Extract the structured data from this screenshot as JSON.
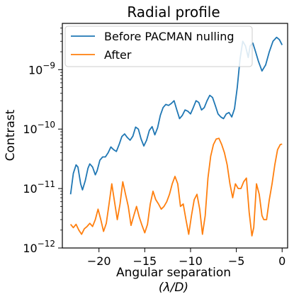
{
  "chart_data": {
    "type": "line",
    "title": "Radial profile",
    "xlabel": "Angular separation",
    "xlabel_unit": "(λ/D)",
    "ylabel": "Contrast",
    "xlim": [
      -24,
      0.6
    ],
    "ylim": [
      1e-12,
      6e-09
    ],
    "yscale": "log",
    "grid": false,
    "legend_position": "top-left",
    "x_ticks": [
      {
        "value": -20,
        "label": "−20"
      },
      {
        "value": -15,
        "label": "−15"
      },
      {
        "value": -10,
        "label": "−10"
      },
      {
        "value": -5,
        "label": "−5"
      },
      {
        "value": 0,
        "label": "0"
      }
    ],
    "y_ticks": [
      {
        "value": 1e-12,
        "base": "10",
        "exp": "−12"
      },
      {
        "value": 1e-11,
        "base": "10",
        "exp": "−11"
      },
      {
        "value": 1e-10,
        "base": "10",
        "exp": "−10"
      },
      {
        "value": 1e-09,
        "base": "10",
        "exp": "−9"
      }
    ],
    "series": [
      {
        "name": "Before PACMAN nulling",
        "color": "#1f77b4",
        "points": [
          [
            -23.1,
            8e-12
          ],
          [
            -22.8,
            1.8e-11
          ],
          [
            -22.5,
            2.5e-11
          ],
          [
            -22.3,
            2.3e-11
          ],
          [
            -22.0,
            1.2e-11
          ],
          [
            -21.8,
            9.5e-12
          ],
          [
            -21.5,
            1.35e-11
          ],
          [
            -21.2,
            2.2e-11
          ],
          [
            -21.0,
            2.6e-11
          ],
          [
            -20.7,
            2.3e-11
          ],
          [
            -20.4,
            1.7e-11
          ],
          [
            -20.2,
            2e-11
          ],
          [
            -19.9,
            3e-11
          ],
          [
            -19.6,
            3.4e-11
          ],
          [
            -19.3,
            3.4e-11
          ],
          [
            -19.0,
            4e-11
          ],
          [
            -18.7,
            5e-11
          ],
          [
            -18.4,
            4.5e-11
          ],
          [
            -18.1,
            4.2e-11
          ],
          [
            -17.8,
            5.5e-11
          ],
          [
            -17.5,
            7.5e-11
          ],
          [
            -17.2,
            8.3e-11
          ],
          [
            -16.9,
            7.2e-11
          ],
          [
            -16.6,
            6.5e-11
          ],
          [
            -16.3,
            7.6e-11
          ],
          [
            -16.0,
            1.08e-10
          ],
          [
            -15.7,
            1e-10
          ],
          [
            -15.4,
            6.8e-11
          ],
          [
            -15.1,
            5.2e-11
          ],
          [
            -14.8,
            6.5e-11
          ],
          [
            -14.5,
            9.5e-11
          ],
          [
            -14.2,
            1.1e-10
          ],
          [
            -13.9,
            8e-11
          ],
          [
            -13.6,
            1.05e-10
          ],
          [
            -13.3,
            1.7e-10
          ],
          [
            -13.0,
            2.3e-10
          ],
          [
            -12.7,
            2.6e-10
          ],
          [
            -12.4,
            2.5e-10
          ],
          [
            -12.1,
            2.7e-10
          ],
          [
            -11.8,
            3e-10
          ],
          [
            -11.5,
            2.1e-10
          ],
          [
            -11.2,
            1.5e-10
          ],
          [
            -10.9,
            1.7e-10
          ],
          [
            -10.6,
            2.1e-10
          ],
          [
            -10.3,
            2e-10
          ],
          [
            -10.0,
            1.8e-10
          ],
          [
            -9.7,
            2.3e-10
          ],
          [
            -9.4,
            3e-10
          ],
          [
            -9.1,
            2.8e-10
          ],
          [
            -8.8,
            2.1e-10
          ],
          [
            -8.5,
            2.3e-10
          ],
          [
            -8.2,
            3e-10
          ],
          [
            -7.9,
            3.7e-10
          ],
          [
            -7.6,
            3.4e-10
          ],
          [
            -7.3,
            2.5e-10
          ],
          [
            -7.0,
            1.8e-10
          ],
          [
            -6.7,
            1.6e-10
          ],
          [
            -6.4,
            1.5e-10
          ],
          [
            -6.1,
            1.8e-10
          ],
          [
            -5.8,
            1.9e-10
          ],
          [
            -5.5,
            1.6e-10
          ],
          [
            -5.2,
            2.2e-10
          ],
          [
            -4.9,
            5e-10
          ],
          [
            -4.6,
            1.5e-09
          ],
          [
            -4.3,
            3e-09
          ],
          [
            -4.0,
            2.5e-09
          ],
          [
            -3.7,
            1.6e-09
          ],
          [
            -3.5,
            2.5e-09
          ],
          [
            -3.2,
            2.8e-09
          ],
          [
            -2.9,
            2e-09
          ],
          [
            -2.6,
            1.4e-09
          ],
          [
            -2.2,
            9.5e-10
          ],
          [
            -1.8,
            1.2e-09
          ],
          [
            -1.4,
            2e-09
          ],
          [
            -1.0,
            3e-09
          ],
          [
            -0.6,
            3.5e-09
          ],
          [
            -0.3,
            3.2e-09
          ],
          [
            0.0,
            2.6e-09
          ]
        ]
      },
      {
        "name": "After",
        "color": "#ff7f0e",
        "points": [
          [
            -23.1,
            2.5e-12
          ],
          [
            -22.8,
            2.2e-12
          ],
          [
            -22.5,
            2.5e-12
          ],
          [
            -22.2,
            2e-12
          ],
          [
            -21.9,
            1.7e-12
          ],
          [
            -21.6,
            2.1e-12
          ],
          [
            -21.3,
            2.3e-12
          ],
          [
            -21.0,
            2.6e-12
          ],
          [
            -20.7,
            2.3e-12
          ],
          [
            -20.4,
            3e-12
          ],
          [
            -20.1,
            4.5e-12
          ],
          [
            -19.8,
            3e-12
          ],
          [
            -19.5,
            1.9e-12
          ],
          [
            -19.2,
            2.6e-12
          ],
          [
            -18.9,
            5.5e-12
          ],
          [
            -18.6,
            1.2e-11
          ],
          [
            -18.3,
            6e-12
          ],
          [
            -18.0,
            3e-12
          ],
          [
            -17.7,
            5.5e-12
          ],
          [
            -17.4,
            1.3e-11
          ],
          [
            -17.1,
            8e-12
          ],
          [
            -16.8,
            5e-12
          ],
          [
            -16.5,
            2.4e-12
          ],
          [
            -16.2,
            3.5e-12
          ],
          [
            -15.9,
            5e-12
          ],
          [
            -15.6,
            3.3e-12
          ],
          [
            -15.3,
            2.4e-12
          ],
          [
            -15.0,
            1.8e-12
          ],
          [
            -14.7,
            2.5e-12
          ],
          [
            -14.4,
            5.5e-12
          ],
          [
            -14.1,
            9e-12
          ],
          [
            -13.8,
            6.5e-12
          ],
          [
            -13.5,
            5.5e-12
          ],
          [
            -13.2,
            4.5e-12
          ],
          [
            -12.9,
            5e-12
          ],
          [
            -12.6,
            6e-12
          ],
          [
            -12.3,
            8e-12
          ],
          [
            -12.0,
            1.2e-11
          ],
          [
            -11.7,
            1.6e-11
          ],
          [
            -11.4,
            1.2e-11
          ],
          [
            -11.1,
            5e-12
          ],
          [
            -10.8,
            5.5e-12
          ],
          [
            -10.5,
            3e-12
          ],
          [
            -10.2,
            1.7e-12
          ],
          [
            -9.9,
            3.5e-12
          ],
          [
            -9.6,
            6.5e-12
          ],
          [
            -9.3,
            8e-12
          ],
          [
            -9.0,
            4.5e-12
          ],
          [
            -8.7,
            1.7e-12
          ],
          [
            -8.4,
            3.5e-12
          ],
          [
            -8.1,
            1.5e-11
          ],
          [
            -7.8,
            3.5e-11
          ],
          [
            -7.5,
            5.5e-11
          ],
          [
            -7.2,
            6.8e-11
          ],
          [
            -6.9,
            7e-11
          ],
          [
            -6.6,
            5.5e-11
          ],
          [
            -6.3,
            4e-11
          ],
          [
            -6.0,
            2.5e-11
          ],
          [
            -5.7,
            1.2e-11
          ],
          [
            -5.4,
            7e-12
          ],
          [
            -5.1,
            1.2e-11
          ],
          [
            -4.8,
            1e-11
          ],
          [
            -4.5,
            1e-11
          ],
          [
            -4.2,
            1.3e-11
          ],
          [
            -3.9,
            1.5e-11
          ],
          [
            -3.6,
            4e-12
          ],
          [
            -3.3,
            1.6e-12
          ],
          [
            -3.1,
            2.2e-12
          ],
          [
            -2.8,
            1.2e-11
          ],
          [
            -2.5,
            8e-12
          ],
          [
            -2.2,
            3.5e-12
          ],
          [
            -2.0,
            3e-12
          ],
          [
            -1.7,
            3e-12
          ],
          [
            -1.4,
            6.5e-12
          ],
          [
            -1.1,
            1.2e-11
          ],
          [
            -0.8,
            2.5e-11
          ],
          [
            -0.5,
            4.5e-11
          ],
          [
            -0.2,
            5.5e-11
          ],
          [
            0.0,
            5.6e-11
          ]
        ]
      }
    ]
  }
}
